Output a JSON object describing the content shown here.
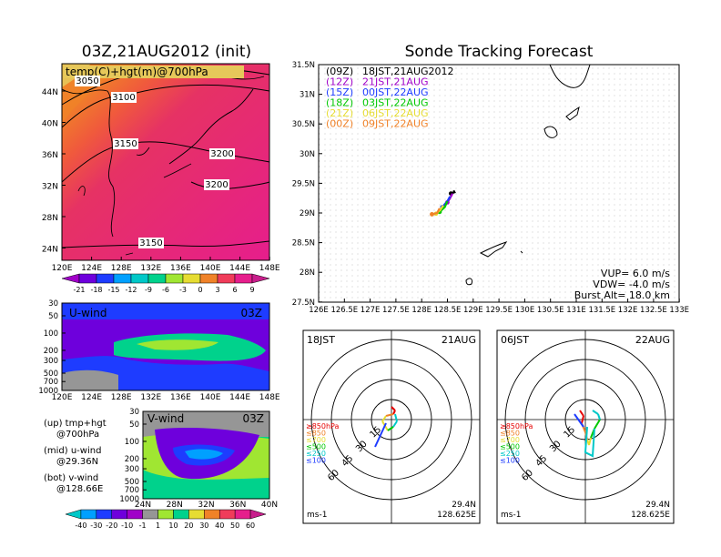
{
  "left": {
    "title": "03Z,21AUG2012 (init)",
    "map": {
      "label": "temp(C)+hgt(m)@700hPa",
      "contours": [
        "3050",
        "3100",
        "3150",
        "3200",
        "3200",
        "3150"
      ],
      "y_ticks": [
        "44N",
        "40N",
        "36N",
        "32N",
        "28N",
        "24N"
      ],
      "x_ticks": [
        "120E",
        "124E",
        "128E",
        "132E",
        "136E",
        "140E",
        "144E",
        "148E"
      ]
    },
    "temp_colorbar": {
      "labels": [
        "-21",
        "-18",
        "-15",
        "-12",
        "-9",
        "-6",
        "-3",
        "0",
        "3",
        "6",
        "9"
      ],
      "colors": [
        "#a000c8",
        "#6e00dc",
        "#1e3cff",
        "#00a0ff",
        "#00c8c8",
        "#00d28c",
        "#a0e632",
        "#e6dc32",
        "#f08228",
        "#f03c5a",
        "#e61e8c",
        "#c81e8c"
      ]
    },
    "u_wind": {
      "label": "U-wind",
      "time": "03Z",
      "y_ticks": [
        "30",
        "50",
        "100",
        "200",
        "300",
        "500",
        "700",
        "1000"
      ],
      "x_ticks": [
        "120E",
        "124E",
        "128E",
        "132E",
        "136E",
        "140E",
        "144E",
        "148E"
      ]
    },
    "v_wind": {
      "label": "V-wind",
      "time": "03Z",
      "y_ticks": [
        "30",
        "50",
        "100",
        "200",
        "300",
        "500",
        "700",
        "1000"
      ],
      "x_ticks": [
        "24N",
        "28N",
        "32N",
        "36N",
        "40N"
      ]
    },
    "notes": [
      {
        "k": "(up) tmp+hgt",
        "v": "@700hPa"
      },
      {
        "k": "(mid) u-wind",
        "v": "@29.36N"
      },
      {
        "k": "(bot) v-wind",
        "v": "@128.66E"
      }
    ],
    "wind_colorbar": {
      "labels": [
        "-40",
        "-30",
        "-20",
        "-10",
        "-1",
        "1",
        "10",
        "20",
        "30",
        "40",
        "50",
        "60"
      ],
      "colors": [
        "#00c8c8",
        "#00a0ff",
        "#1e3cff",
        "#6e00dc",
        "#a000c8",
        "#969696",
        "#a0e632",
        "#00d28c",
        "#e6dc32",
        "#f08228",
        "#f03c5a",
        "#e61e8c",
        "#c81e8c"
      ]
    }
  },
  "right": {
    "title": "Sonde Tracking Forecast",
    "legend": [
      {
        "code": "(09Z)",
        "label": "18JST,21AUG2012",
        "color": "#000000"
      },
      {
        "code": "(12Z)",
        "label": "21JST,21AUG",
        "color": "#a000c8"
      },
      {
        "code": "(15Z)",
        "label": "00JST,22AUG",
        "color": "#1e3cff"
      },
      {
        "code": "(18Z)",
        "label": "03JST,22AUG",
        "color": "#00c800"
      },
      {
        "code": "(21Z)",
        "label": "06JST,22AUG",
        "color": "#e6dc32"
      },
      {
        "code": "(00Z)",
        "label": "09JST,22AUG",
        "color": "#f08228"
      }
    ],
    "y_ticks": [
      "31.5N",
      "31N",
      "30.5N",
      "30N",
      "29.5N",
      "29N",
      "28.5N",
      "28N",
      "27.5N"
    ],
    "x_ticks": [
      "126E",
      "126.5E",
      "127E",
      "127.5E",
      "128E",
      "128.5E",
      "129E",
      "129.5E",
      "130E",
      "130.5E",
      "131E",
      "131.5E",
      "132E",
      "132.5E",
      "133E"
    ],
    "info": {
      "vup": "VUP= 6.0 m/s",
      "vdw": "VDW= -4.0 m/s",
      "burst": "Burst Alt= 18.0 km"
    }
  },
  "polar": [
    {
      "time": "18JST",
      "date": "21AUG",
      "ring_labels": [
        "15",
        "30",
        "45",
        "60"
      ],
      "levels": [
        {
          "label": "≥850hPa",
          "color": "#e60000"
        },
        {
          "label": "≤850",
          "color": "#f08228"
        },
        {
          "label": "≤700",
          "color": "#e6dc32"
        },
        {
          "label": "≤500",
          "color": "#00c800"
        },
        {
          "label": "≤250",
          "color": "#00c8c8"
        },
        {
          "label": "≤100",
          "color": "#1e3cff"
        }
      ],
      "unit": "ms-1",
      "lat": "29.4N",
      "lon": "128.625E"
    },
    {
      "time": "06JST",
      "date": "22AUG",
      "ring_labels": [
        "15",
        "30",
        "45",
        "60"
      ],
      "levels": [
        {
          "label": "≥850hPa",
          "color": "#e60000"
        },
        {
          "label": "≤850",
          "color": "#f08228"
        },
        {
          "label": "≤700",
          "color": "#e6dc32"
        },
        {
          "label": "≤500",
          "color": "#00c800"
        },
        {
          "label": "≤250",
          "color": "#00c8c8"
        },
        {
          "label": "≤100",
          "color": "#1e3cff"
        }
      ],
      "unit": "ms-1",
      "lat": "29.4N",
      "lon": "128.625E"
    }
  ],
  "chart_data": [
    {
      "type": "heatmap",
      "title": "03Z,21AUG2012 (init)",
      "variable": "temp(C)+hgt(m)@700hPa",
      "x_range": [
        "120E",
        "148E"
      ],
      "y_range": [
        "24N",
        "44N"
      ],
      "contour_values": [
        3050,
        3100,
        3150,
        3200
      ]
    },
    {
      "type": "heatmap",
      "variable": "U-wind",
      "x_range": [
        "120E",
        "148E"
      ],
      "y_range_hpa": [
        1000,
        30
      ],
      "y_scale": "log"
    },
    {
      "type": "heatmap",
      "variable": "V-wind",
      "x_range": [
        "24N",
        "40N"
      ],
      "y_range_hpa": [
        1000,
        30
      ],
      "y_scale": "log"
    },
    {
      "type": "line",
      "title": "Sonde Tracking Forecast",
      "xlim": [
        126,
        133
      ],
      "ylim": [
        27.5,
        31.5
      ],
      "series": [
        {
          "name": "(09Z) 18JST,21AUG2012",
          "points": [
            [
              128.62,
              29.38
            ],
            [
              128.64,
              29.35
            ],
            [
              128.57,
              29.33
            ]
          ]
        },
        {
          "name": "(12Z) 21JST,21AUG",
          "points": [
            [
              128.6,
              29.33
            ],
            [
              128.55,
              29.25
            ],
            [
              128.5,
              29.18
            ]
          ]
        },
        {
          "name": "(15Z) 00JST,22AUG",
          "points": [
            [
              128.55,
              29.28
            ],
            [
              128.5,
              29.2
            ],
            [
              128.4,
              29.1
            ]
          ]
        },
        {
          "name": "(18Z) 03JST,22AUG",
          "points": [
            [
              128.5,
              29.2
            ],
            [
              128.45,
              29.1
            ],
            [
              128.35,
              29.02
            ]
          ]
        },
        {
          "name": "(21Z) 06JST,22AUG",
          "points": [
            [
              128.42,
              29.13
            ],
            [
              128.36,
              29.05
            ],
            [
              128.28,
              28.99
            ]
          ]
        },
        {
          "name": "(00Z) 09JST,22AUG",
          "points": [
            [
              128.35,
              29.08
            ],
            [
              128.3,
              29.0
            ],
            [
              128.2,
              28.98
            ]
          ]
        }
      ]
    }
  ]
}
